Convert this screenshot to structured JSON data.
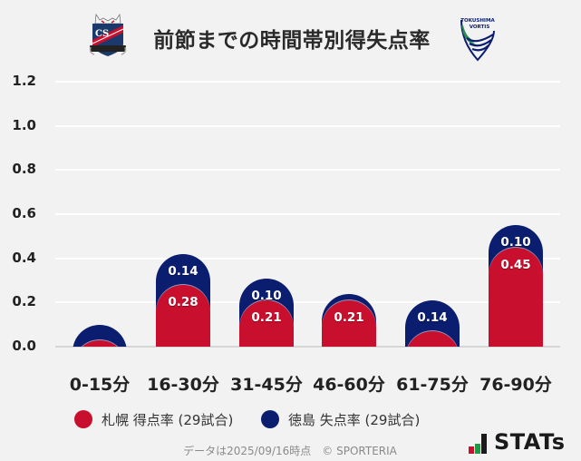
{
  "header": {
    "title": "前節までの時間帯別得失点率",
    "home_logo": "consadole-sapporo-crest",
    "away_logo": "tokushima-vortis-crest",
    "away_logo_text_line1": "TOKUSHIMA",
    "away_logo_text_line2": "VORTIS",
    "home_logo_text": "CS"
  },
  "colors": {
    "background": "#f2f2f2",
    "home": "#c8102e",
    "away": "#0b1d6f",
    "grid": "#ffffff",
    "baseline": "#d6d6d6"
  },
  "legend": {
    "items": [
      {
        "label": "札幌 得点率 (29試合)",
        "color": "#c8102e"
      },
      {
        "label": "徳島 失点率 (29試合)",
        "color": "#0b1d6f"
      }
    ]
  },
  "footer": {
    "note": "データは2025/09/16時点　© SPORTERIA",
    "brand": "STATs"
  },
  "chart_data": {
    "type": "bar",
    "stacked": true,
    "title": "前節までの時間帯別得失点率",
    "xlabel": "",
    "ylabel": "",
    "ylim": [
      0,
      1.2
    ],
    "yticks": [
      "1.2",
      "1.0",
      "0.8",
      "0.6",
      "0.4",
      "0.2",
      "0.0"
    ],
    "grid": true,
    "legend_position": "bottom",
    "categories": [
      "0-15分",
      "16-30分",
      "31-45分",
      "46-60分",
      "61-75分",
      "76-90分"
    ],
    "series": [
      {
        "name": "札幌 得点率 (29試合)",
        "color": "#c8102e",
        "values": [
          0.03,
          0.28,
          0.21,
          0.21,
          0.07,
          0.45
        ],
        "labels": [
          null,
          "0.28",
          "0.21",
          "0.21",
          null,
          "0.45"
        ]
      },
      {
        "name": "徳島 失点率 (29試合)",
        "color": "#0b1d6f",
        "values": [
          0.07,
          0.14,
          0.1,
          0.03,
          0.14,
          0.1
        ],
        "labels": [
          null,
          "0.14",
          "0.10",
          null,
          "0.14",
          "0.10"
        ]
      }
    ]
  }
}
